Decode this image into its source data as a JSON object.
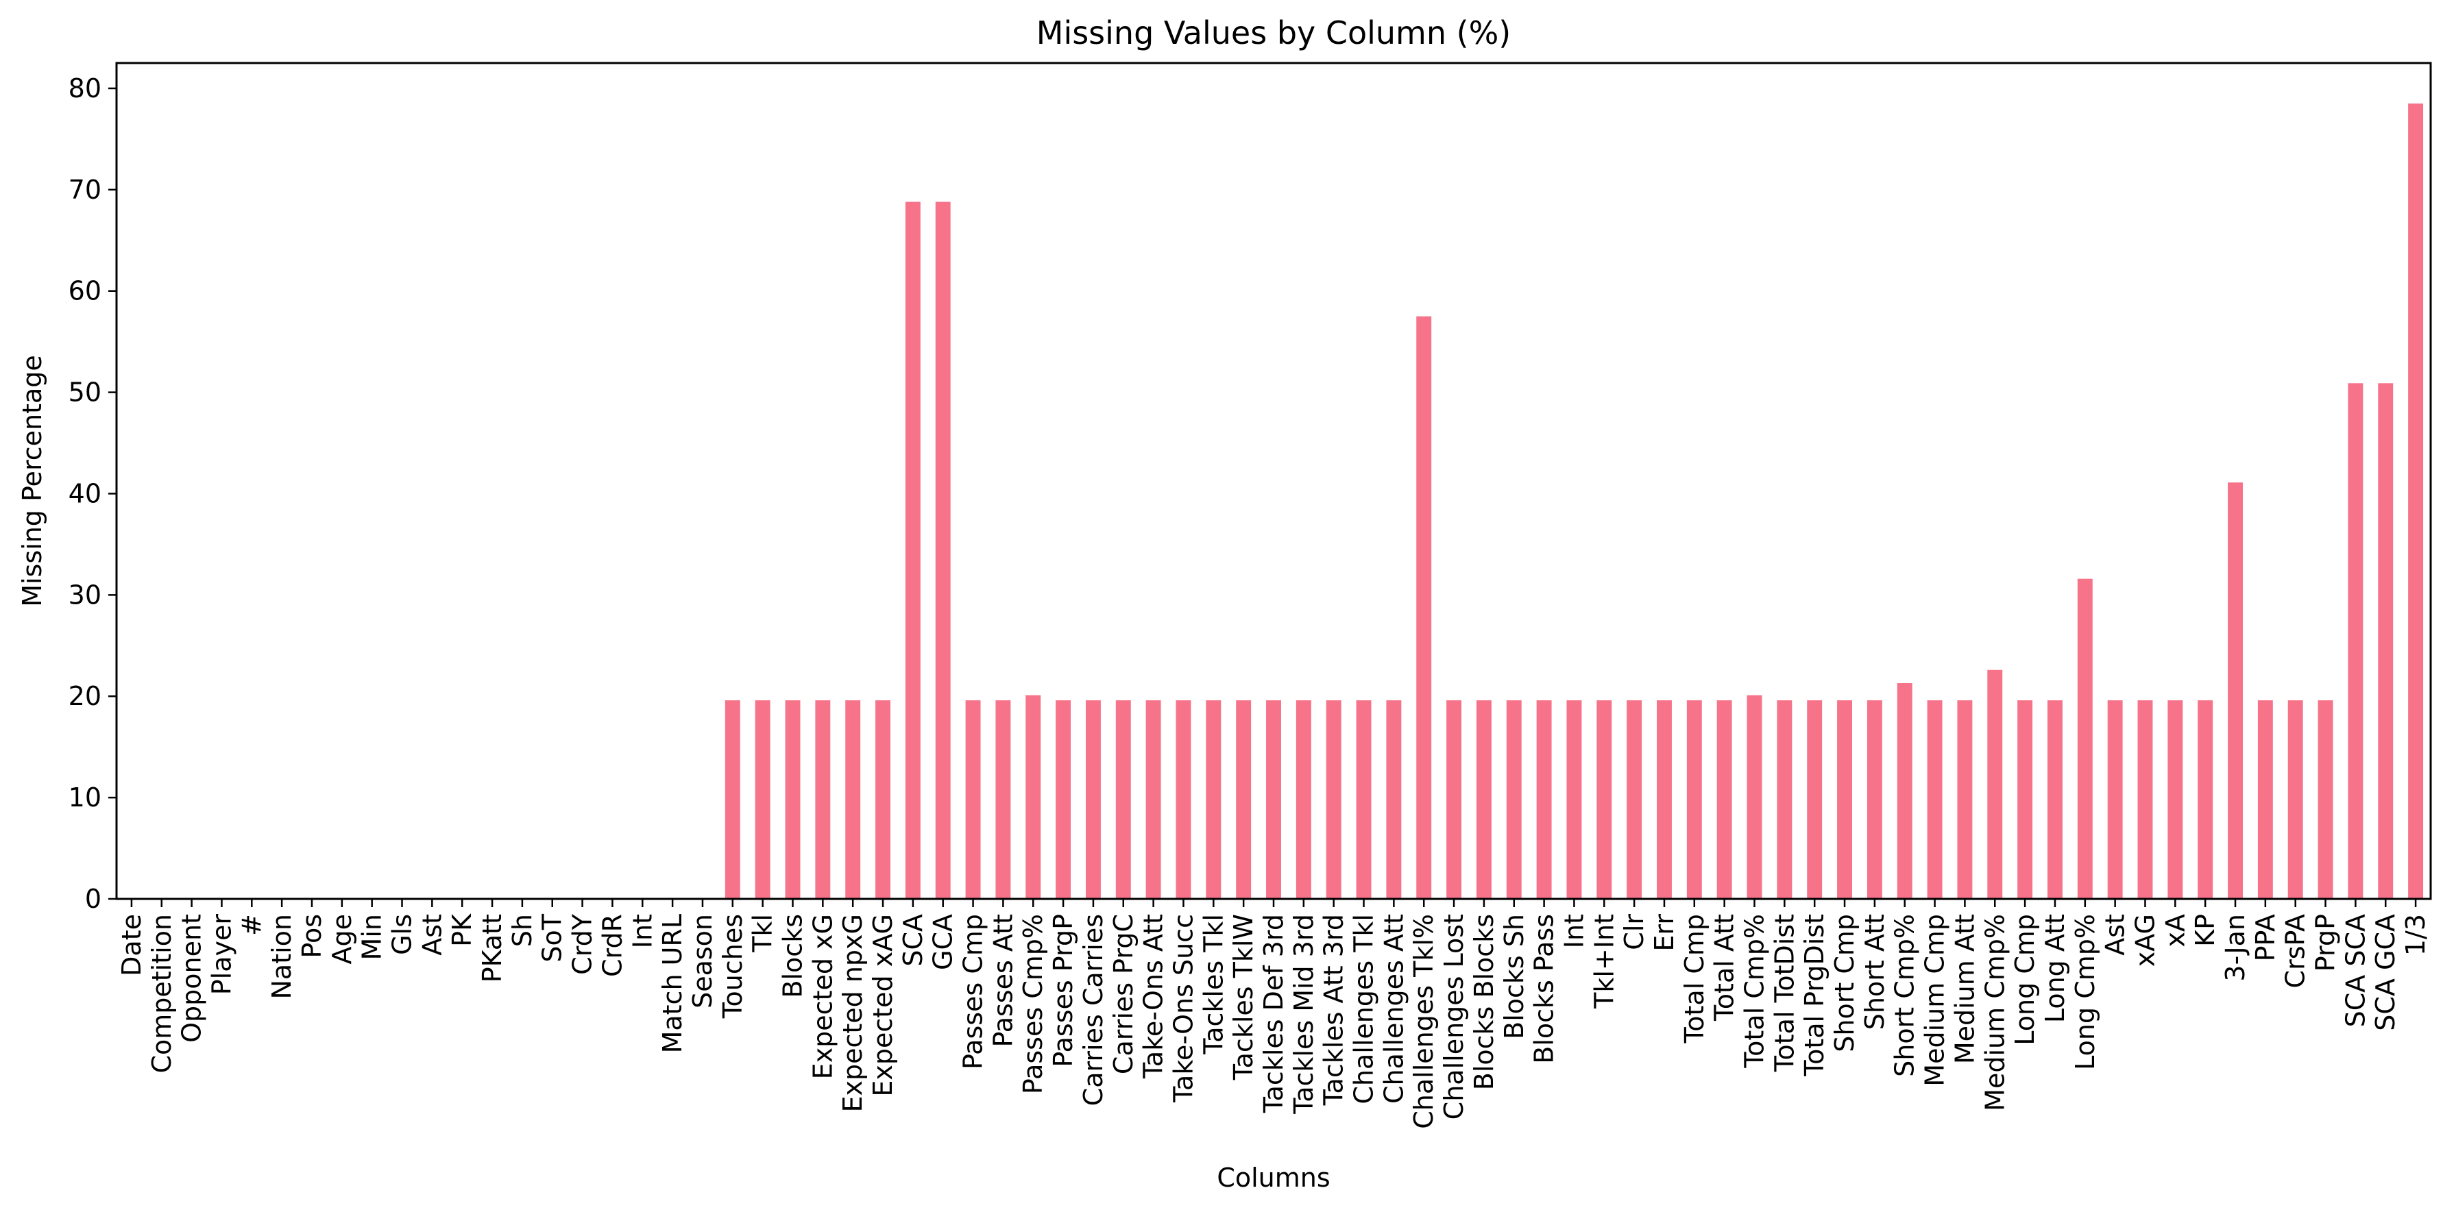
{
  "chart_data": {
    "type": "bar",
    "title": "Missing Values by Column (%)",
    "xlabel": "Columns",
    "ylabel": "Missing Percentage",
    "ylim": [
      0,
      82.5
    ],
    "yticks": [
      0,
      10,
      20,
      30,
      40,
      50,
      60,
      70,
      80
    ],
    "grid": false,
    "legend": "none",
    "bar_color": "#f7738a",
    "categories": [
      "Date",
      "Competition",
      "Opponent",
      "Player",
      "#",
      "Nation",
      "Pos",
      "Age",
      "Min",
      "Gls",
      "Ast",
      "PK",
      "PKatt",
      "Sh",
      "SoT",
      "CrdY",
      "CrdR",
      "Int",
      "Match URL",
      "Season",
      "Touches",
      "Tkl",
      "Blocks",
      "Expected xG",
      "Expected npxG",
      "Expected xAG",
      "SCA",
      "GCA",
      "Passes Cmp",
      "Passes Att",
      "Passes Cmp%",
      "Passes PrgP",
      "Carries Carries",
      "Carries PrgC",
      "Take-Ons Att",
      "Take-Ons Succ",
      "Tackles Tkl",
      "Tackles TklW",
      "Tackles Def 3rd",
      "Tackles Mid 3rd",
      "Tackles Att 3rd",
      "Challenges Tkl",
      "Challenges Att",
      "Challenges Tkl%",
      "Challenges Lost",
      "Blocks Blocks",
      "Blocks Sh",
      "Blocks Pass",
      "Int",
      "Tkl+Int",
      "Clr",
      "Err",
      "Total Cmp",
      "Total Att",
      "Total Cmp%",
      "Total TotDist",
      "Total PrgDist",
      "Short Cmp",
      "Short Att",
      "Short Cmp%",
      "Medium Cmp",
      "Medium Att",
      "Medium Cmp%",
      "Long Cmp",
      "Long Att",
      "Long Cmp%",
      "Ast",
      "xAG",
      "xA",
      "KP",
      "3-Jan",
      "PPA",
      "CrsPA",
      "PrgP",
      "SCA SCA",
      "SCA GCA",
      "1/3"
    ],
    "values": [
      0,
      0,
      0,
      0,
      0,
      0,
      0,
      0.1,
      0,
      0,
      0,
      0,
      0,
      0,
      0,
      0,
      0,
      0,
      0,
      0,
      19.6,
      19.6,
      19.6,
      19.6,
      19.6,
      19.6,
      68.8,
      68.8,
      19.6,
      19.6,
      20.1,
      19.6,
      19.6,
      19.6,
      19.6,
      19.6,
      19.6,
      19.6,
      19.6,
      19.6,
      19.6,
      19.6,
      19.6,
      57.5,
      19.6,
      19.6,
      19.6,
      19.6,
      19.6,
      19.6,
      19.6,
      19.6,
      19.6,
      19.6,
      20.1,
      19.6,
      19.6,
      19.6,
      19.6,
      21.3,
      19.6,
      19.6,
      22.6,
      19.6,
      19.6,
      31.6,
      19.6,
      19.6,
      19.6,
      19.6,
      41.1,
      19.6,
      19.6,
      19.6,
      50.9,
      50.9,
      78.5
    ]
  }
}
